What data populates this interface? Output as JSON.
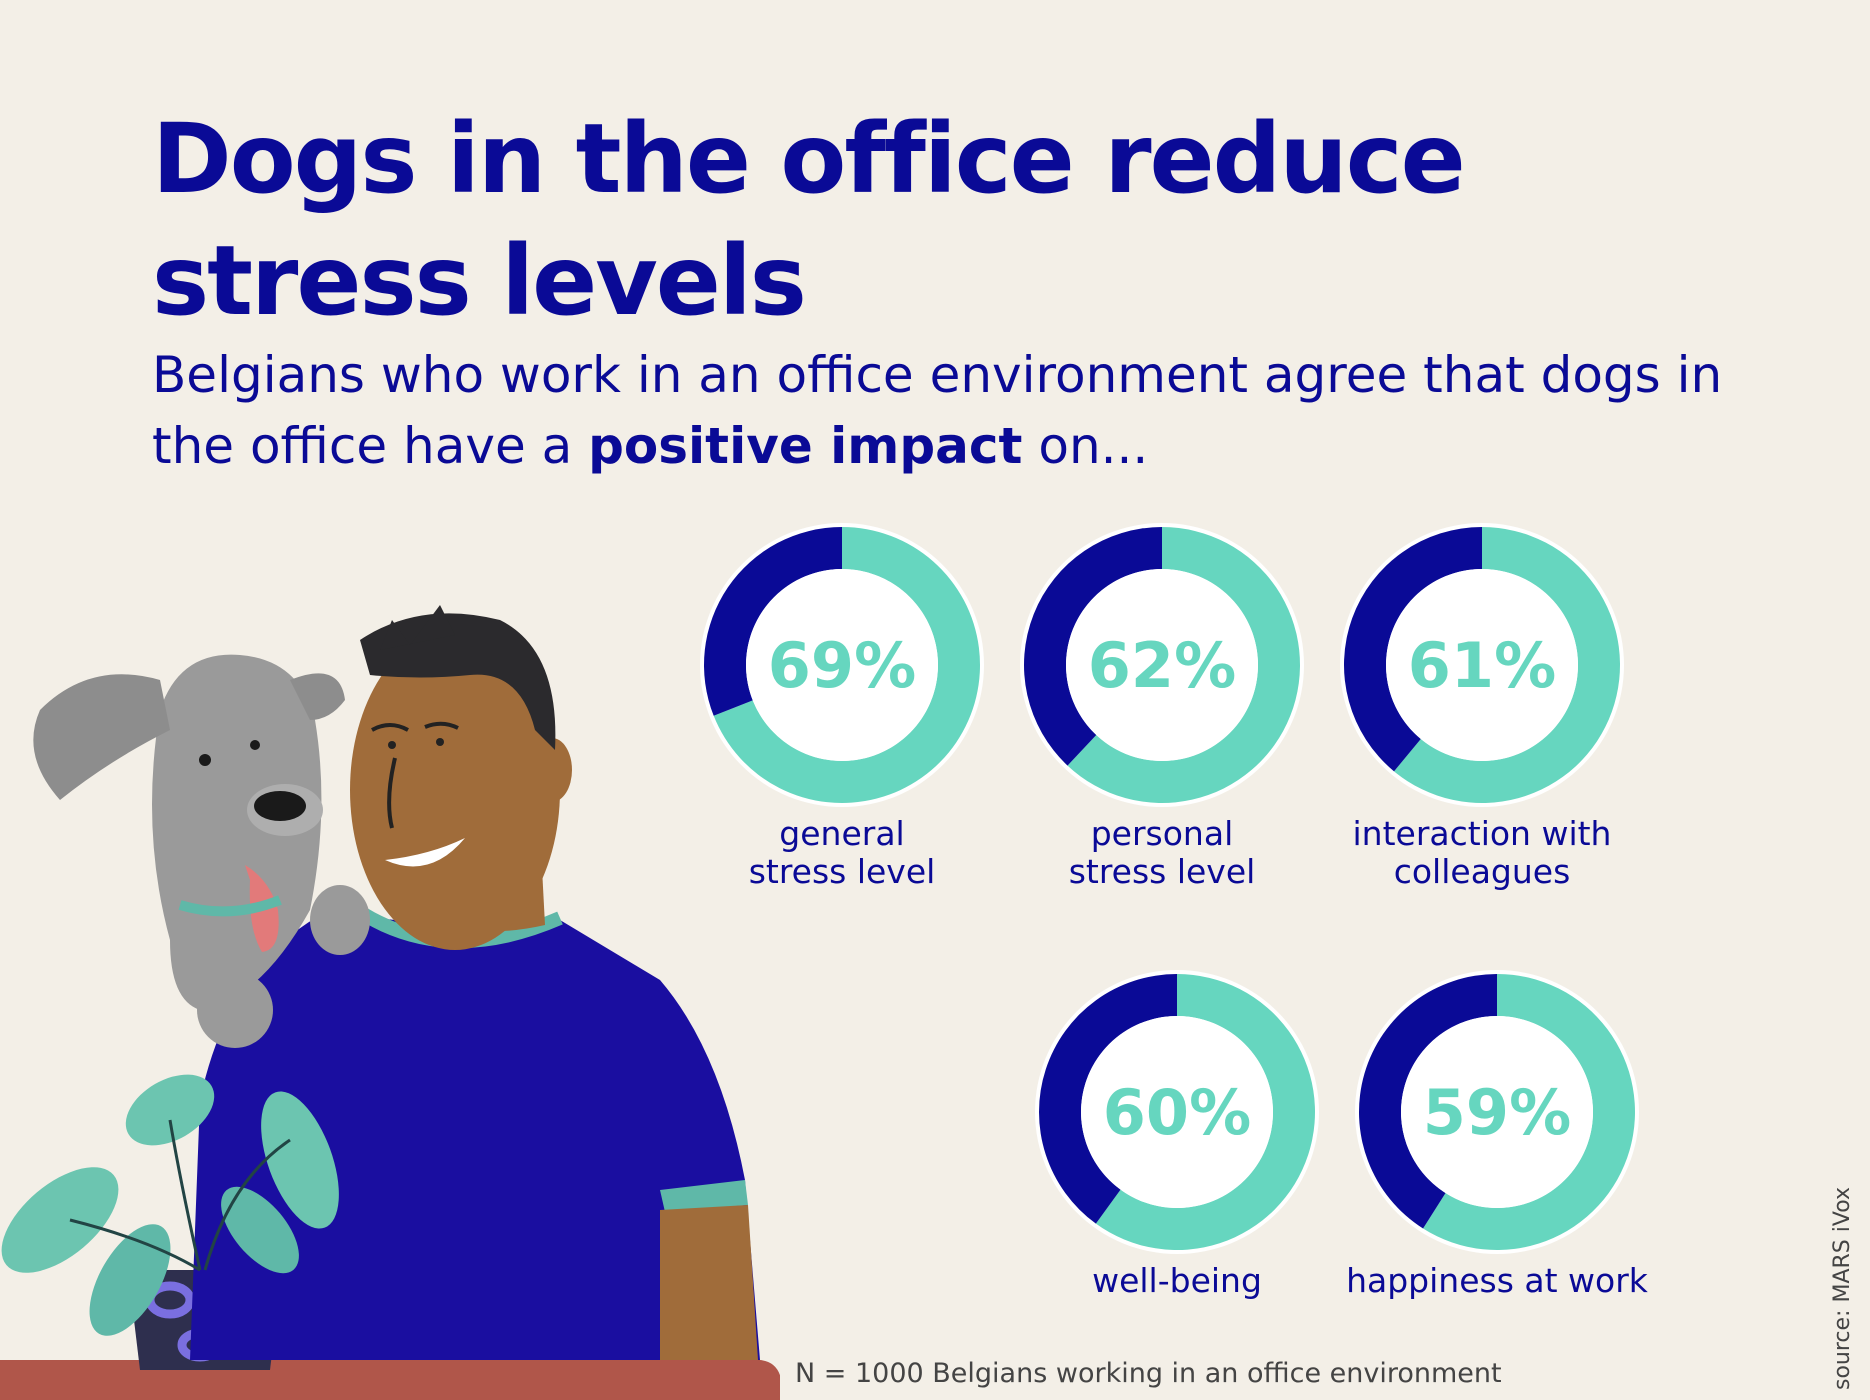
{
  "header": {
    "title": "Dogs in the office reduce stress levels",
    "subtitle_part1": "Belgians who work in an office environment agree that dogs in the office have a ",
    "subtitle_bold": "positive impact",
    "subtitle_part2": " on..."
  },
  "chart_data": {
    "type": "pie",
    "title": "Dogs in the office reduce stress levels",
    "categories": [
      "general stress level",
      "personal stress level",
      "interaction with colleagues",
      "well-being",
      "happiness at work"
    ],
    "values": [
      69,
      62,
      61,
      60,
      59
    ],
    "value_labels": [
      "69%",
      "62%",
      "61%",
      "60%",
      "59%"
    ],
    "labels_line1": [
      "general",
      "personal",
      "interaction with",
      "well-being",
      "happiness at work"
    ],
    "labels_line2": [
      "stress level",
      "stress level",
      "colleagues",
      "",
      ""
    ],
    "unit": "%"
  },
  "footnote": "N = 1000 Belgians working in an office environment",
  "source": "source: MARS iVox",
  "colors": {
    "background": "#f3efe7",
    "title": "#0a0a96",
    "teal": "#66d6bf",
    "navy": "#0a0a96"
  }
}
